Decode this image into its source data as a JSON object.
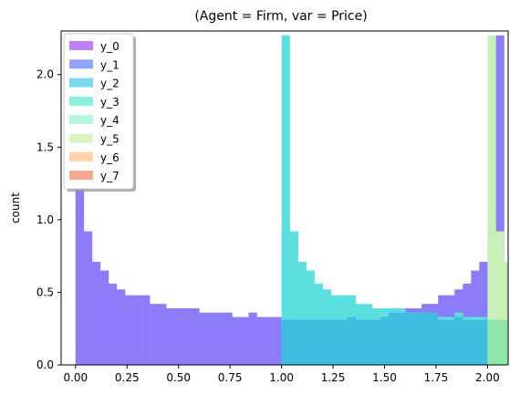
{
  "chart_data": {
    "type": "bar",
    "title": "(Agent = Firm, var = Price)",
    "xlabel": "",
    "ylabel": "count",
    "xlim": [
      -0.07,
      2.1
    ],
    "ylim": [
      0,
      2.3
    ],
    "xticks": [
      0.0,
      0.25,
      0.5,
      0.75,
      1.0,
      1.25,
      1.5,
      1.75,
      2.0
    ],
    "xtick_labels": [
      "0.00",
      "0.25",
      "0.50",
      "0.75",
      "1.00",
      "1.25",
      "1.50",
      "1.75",
      "2.00"
    ],
    "yticks": [
      0.0,
      0.5,
      1.0,
      1.5,
      2.0
    ],
    "ytick_labels": [
      "0.0",
      "0.5",
      "1.0",
      "1.5",
      "2.0"
    ],
    "legend": {
      "position": "top-left",
      "entries": [
        "y_0",
        "y_1",
        "y_2",
        "y_3",
        "y_4",
        "y_5",
        "y_6",
        "y_7"
      ]
    },
    "bin_width": 0.04,
    "series": [
      {
        "name": "y_1",
        "color": "#8a7df7",
        "x_start": 0.0,
        "values": [
          1.25,
          0.92,
          0.71,
          0.65,
          0.56,
          0.52,
          0.48,
          0.48,
          0.48,
          0.42,
          0.42,
          0.39,
          0.39,
          0.39,
          0.39,
          0.36,
          0.36,
          0.36,
          0.36,
          0.33,
          0.33,
          0.36,
          0.33,
          0.33,
          0.33,
          0.33,
          0.33,
          0.33,
          0.33,
          0.33,
          0.33,
          0.33,
          0.33,
          0.33,
          0.33,
          0.33,
          0.36,
          0.36,
          0.39,
          0.39,
          0.39,
          0.39,
          0.42,
          0.42,
          0.48,
          0.48,
          0.52,
          0.56,
          0.65,
          0.71,
          0.92,
          2.27
        ]
      },
      {
        "name": "y_3",
        "color": "#5ddfe0",
        "x_start": 1.0,
        "values": [
          2.27,
          0.92,
          0.71,
          0.65,
          0.56,
          0.52,
          0.48,
          0.48,
          0.48,
          0.42,
          0.42,
          0.39,
          0.39,
          0.39,
          0.39,
          0.36,
          0.36,
          0.36,
          0.36,
          0.33,
          0.33,
          0.36,
          0.33,
          0.33,
          0.33
        ]
      },
      {
        "name": "y_2",
        "color": "#3fbde0",
        "x_start": 1.0,
        "values": [
          0.31,
          0.31,
          0.31,
          0.31,
          0.31,
          0.31,
          0.31,
          0.31,
          0.33,
          0.31,
          0.31,
          0.31,
          0.33,
          0.36,
          0.36,
          0.36,
          0.36,
          0.36,
          0.36,
          0.31,
          0.31,
          0.33,
          0.31,
          0.31,
          0.31,
          0.31,
          0.31,
          0.31,
          0.31,
          0.31,
          0.31,
          0.31,
          0.31,
          0.31
        ]
      },
      {
        "name": "y_5",
        "color": "#c8efb8",
        "x_start": 2.0,
        "values": [
          2.27,
          0.92,
          0.71
        ]
      },
      {
        "name": "y_4",
        "color": "#8fe6a8",
        "x_start": 2.0,
        "values": [
          0.31,
          0.31,
          0.31
        ]
      }
    ],
    "legend_colors": [
      "#c080f7",
      "#94a4f7",
      "#7bd8ef",
      "#8deedf",
      "#b7f7d8",
      "#d8f4c2",
      "#ffd2a8",
      "#f7a890"
    ]
  }
}
